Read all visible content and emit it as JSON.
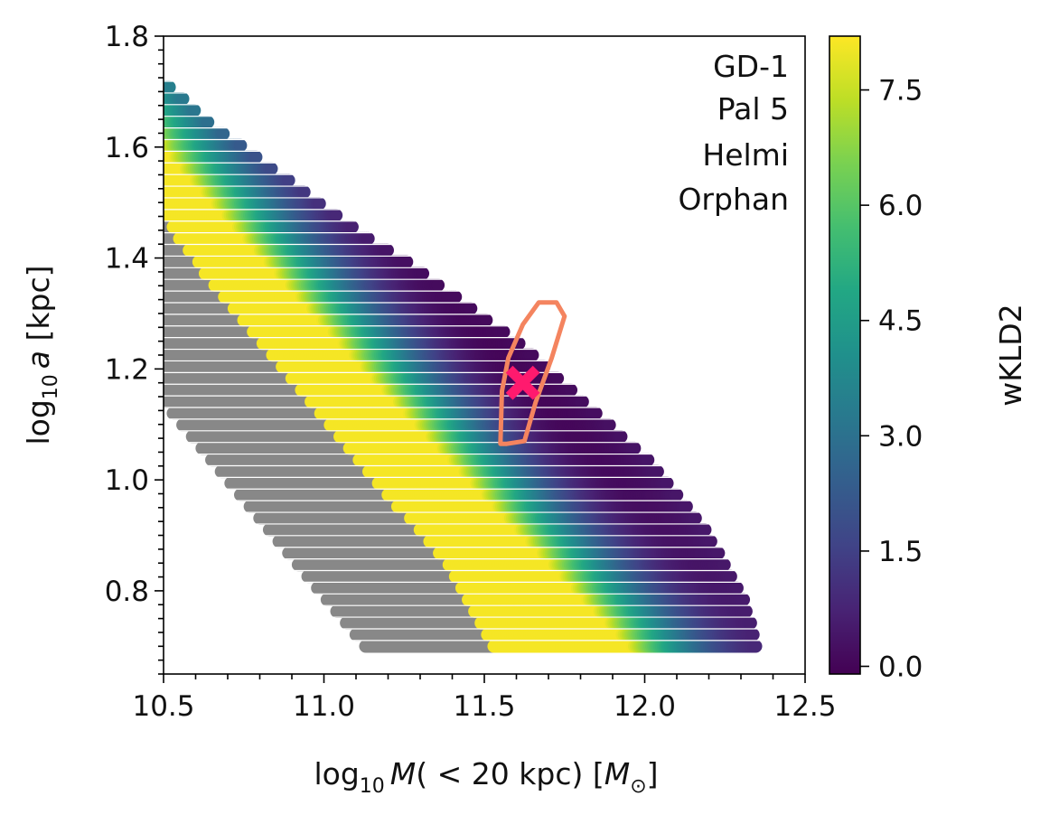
{
  "chart_data": {
    "type": "scatter",
    "title": "",
    "x": {
      "lim": [
        10.5,
        12.5
      ],
      "ticks": [
        10.5,
        11.0,
        11.5,
        12.0,
        12.5
      ],
      "tick_labels": [
        "10.5",
        "11.0",
        "11.5",
        "12.0",
        "12.5"
      ],
      "minor_step": 0.1
    },
    "y": {
      "lim": [
        0.65,
        1.8
      ],
      "ticks": [
        0.8,
        1.0,
        1.2,
        1.4,
        1.6,
        1.8
      ],
      "tick_labels": [
        "0.8",
        "1.0",
        "1.2",
        "1.4",
        "1.6",
        "1.8"
      ],
      "minor_step": 0.025
    },
    "xlabel": {
      "prefix": "log",
      "sub": "10",
      "var": "M",
      "rest": "( < 20 kpc) [",
      "unit": "M",
      "unit_sub": "⊙",
      "end": "]"
    },
    "ylabel": {
      "prefix": "log",
      "sub": "10",
      "var": "a",
      "rest": " [kpc]"
    },
    "legend_streams": [
      "GD-1",
      "Pal 5",
      "Helmi",
      "Orphan"
    ],
    "colorbar": {
      "label": "wKLD2",
      "range": [
        -0.1,
        8.2
      ],
      "ticks": [
        0.0,
        1.5,
        3.0,
        4.5,
        6.0,
        7.5
      ],
      "tick_labels": [
        "0.0",
        "1.5",
        "3.0",
        "4.5",
        "6.0",
        "7.5"
      ],
      "colormap": "viridis"
    },
    "grid_rows": {
      "y_start": 0.7,
      "y_end": 1.8,
      "y_step": 0.021,
      "x_min": [
        11.13,
        11.1,
        11.07,
        11.04,
        11.01,
        10.98,
        10.95,
        10.92,
        10.89,
        10.86,
        10.83,
        10.8,
        10.77,
        10.74,
        10.71,
        10.68,
        10.65,
        10.62,
        10.59,
        10.56,
        10.53,
        10.5,
        10.5,
        10.5,
        10.5,
        10.5,
        10.5,
        10.5,
        10.5,
        10.5,
        10.5,
        10.5,
        10.5,
        10.5,
        10.5,
        10.5,
        10.5,
        10.5,
        10.5,
        10.5,
        10.5,
        10.5,
        10.5,
        10.5,
        10.5,
        10.5,
        10.5,
        10.5,
        10.5,
        10.5,
        10.5,
        10.5,
        10.5
      ],
      "x_max": [
        12.35,
        12.34,
        12.33,
        12.32,
        12.31,
        12.29,
        12.27,
        12.25,
        12.23,
        12.21,
        12.19,
        12.16,
        12.13,
        12.1,
        12.07,
        12.04,
        12.01,
        11.97,
        11.93,
        11.89,
        11.85,
        11.81,
        11.77,
        11.73,
        11.69,
        11.65,
        11.61,
        11.56,
        11.51,
        11.46,
        11.41,
        11.36,
        11.31,
        11.26,
        11.2,
        11.14,
        11.09,
        11.04,
        10.99,
        10.94,
        10.89,
        10.84,
        10.79,
        10.74,
        10.69,
        10.64,
        10.6,
        10.56,
        10.52,
        10.5,
        10.5,
        10.5,
        10.5
      ],
      "gray_cut": [
        11.53,
        11.51,
        11.49,
        11.47,
        11.45,
        11.43,
        11.41,
        11.39,
        11.36,
        11.33,
        11.3,
        11.27,
        11.23,
        11.2,
        11.17,
        11.14,
        11.11,
        11.08,
        11.05,
        11.02,
        10.99,
        10.96,
        10.93,
        10.9,
        10.87,
        10.84,
        10.81,
        10.78,
        10.75,
        10.72,
        10.69,
        10.66,
        10.63,
        10.61,
        10.58,
        10.55,
        10.53,
        10.51,
        10.5,
        10.5,
        10.5,
        10.5,
        10.5,
        10.5,
        10.5,
        10.5,
        10.5,
        10.5,
        10.5,
        10.5,
        10.5,
        10.5,
        10.5
      ]
    },
    "valley": {
      "x0": 11.64,
      "y0": 1.18,
      "slope": -0.62
    },
    "best_fit_marker": {
      "x": 11.62,
      "y": 1.175,
      "symbol": "x",
      "color": "#ff1a6e"
    },
    "contour_color": "#f4845f",
    "contour": [
      [
        11.57,
        1.065
      ],
      [
        11.625,
        1.07
      ],
      [
        11.66,
        1.14
      ],
      [
        11.71,
        1.22
      ],
      [
        11.75,
        1.295
      ],
      [
        11.725,
        1.32
      ],
      [
        11.67,
        1.32
      ],
      [
        11.62,
        1.28
      ],
      [
        11.575,
        1.22
      ],
      [
        11.555,
        1.16
      ],
      [
        11.55,
        1.065
      ]
    ],
    "gray_color": "#888888"
  }
}
